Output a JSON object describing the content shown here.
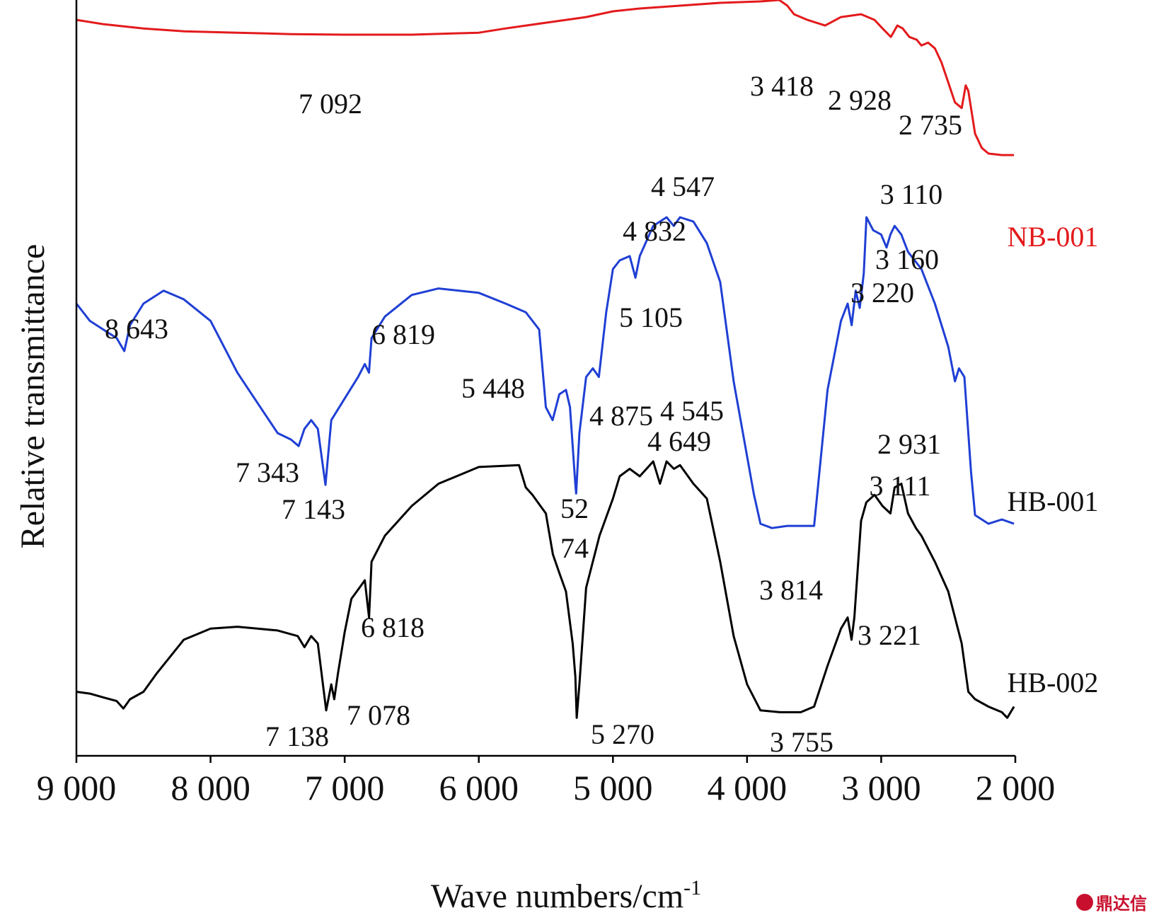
{
  "chart_data": {
    "type": "line",
    "xlabel": "Wave numbers/cm",
    "xlabel_superscript": "-1",
    "ylabel": "Relative transmittance",
    "xlim": [
      9000,
      2000
    ],
    "x_reversed": true,
    "xticks": [
      {
        "value": 9000,
        "label": "9 000"
      },
      {
        "value": 8000,
        "label": "8 000"
      },
      {
        "value": 7000,
        "label": "7 000"
      },
      {
        "value": 6000,
        "label": "6 000"
      },
      {
        "value": 5000,
        "label": "5 000"
      },
      {
        "value": 4000,
        "label": "4 000"
      },
      {
        "value": 3000,
        "label": "3 000"
      },
      {
        "value": 2000,
        "label": "2 000"
      }
    ],
    "ylim": [
      0,
      100
    ],
    "series": [
      {
        "name": "NB-001",
        "color": "#e31a1c",
        "points": [
          [
            9000,
            95
          ],
          [
            8800,
            93.5
          ],
          [
            8500,
            92
          ],
          [
            8200,
            91
          ],
          [
            7800,
            90.5
          ],
          [
            7400,
            90
          ],
          [
            7000,
            89.8
          ],
          [
            6500,
            89.8
          ],
          [
            6000,
            90.5
          ],
          [
            5800,
            92
          ],
          [
            5500,
            94
          ],
          [
            5200,
            96
          ],
          [
            5000,
            98
          ],
          [
            4800,
            99
          ],
          [
            4500,
            100
          ],
          [
            4200,
            101
          ],
          [
            3900,
            101.5
          ],
          [
            3760,
            102
          ],
          [
            3700,
            100
          ],
          [
            3650,
            97
          ],
          [
            3550,
            95
          ],
          [
            3418,
            93
          ],
          [
            3300,
            96
          ],
          [
            3150,
            97
          ],
          [
            3050,
            95
          ],
          [
            2990,
            92
          ],
          [
            2928,
            89
          ],
          [
            2880,
            93
          ],
          [
            2840,
            92
          ],
          [
            2790,
            89
          ],
          [
            2735,
            88
          ],
          [
            2700,
            86
          ],
          [
            2650,
            87
          ],
          [
            2600,
            85
          ],
          [
            2550,
            80
          ],
          [
            2500,
            73
          ],
          [
            2450,
            66
          ],
          [
            2400,
            64
          ],
          [
            2370,
            72
          ],
          [
            2350,
            70
          ],
          [
            2300,
            55
          ],
          [
            2250,
            50
          ],
          [
            2200,
            48
          ],
          [
            2100,
            47.5
          ],
          [
            2010,
            47.5
          ]
        ]
      },
      {
        "name": "HB-001",
        "color": "#1f3fd4",
        "points": [
          [
            9000,
            60
          ],
          [
            8900,
            56
          ],
          [
            8800,
            54
          ],
          [
            8700,
            52
          ],
          [
            8643,
            49
          ],
          [
            8600,
            55
          ],
          [
            8500,
            60
          ],
          [
            8350,
            63
          ],
          [
            8200,
            61
          ],
          [
            8000,
            56
          ],
          [
            7800,
            44
          ],
          [
            7650,
            37
          ],
          [
            7500,
            30
          ],
          [
            7400,
            28.5
          ],
          [
            7343,
            27
          ],
          [
            7300,
            31
          ],
          [
            7250,
            33
          ],
          [
            7200,
            31
          ],
          [
            7143,
            18
          ],
          [
            7100,
            33
          ],
          [
            7000,
            38
          ],
          [
            6900,
            43
          ],
          [
            6850,
            46
          ],
          [
            6819,
            44
          ],
          [
            6800,
            52
          ],
          [
            6700,
            57
          ],
          [
            6500,
            62
          ],
          [
            6300,
            63.5
          ],
          [
            6000,
            62.5
          ],
          [
            5800,
            60
          ],
          [
            5650,
            58
          ],
          [
            5550,
            54
          ],
          [
            5500,
            36
          ],
          [
            5450,
            33
          ],
          [
            5400,
            39
          ],
          [
            5350,
            40
          ],
          [
            5320,
            36
          ],
          [
            5280,
            18
          ],
          [
            5274,
            16
          ],
          [
            5250,
            30
          ],
          [
            5200,
            43
          ],
          [
            5150,
            45
          ],
          [
            5105,
            43
          ],
          [
            5050,
            58
          ],
          [
            5000,
            68
          ],
          [
            4950,
            70
          ],
          [
            4875,
            71
          ],
          [
            4832,
            66
          ],
          [
            4800,
            71
          ],
          [
            4700,
            78
          ],
          [
            4600,
            80
          ],
          [
            4547,
            78
          ],
          [
            4500,
            80
          ],
          [
            4400,
            79
          ],
          [
            4300,
            74
          ],
          [
            4200,
            65
          ],
          [
            4100,
            42
          ],
          [
            3950,
            16
          ],
          [
            3900,
            9
          ],
          [
            3814,
            8
          ],
          [
            3700,
            8.5
          ],
          [
            3500,
            8.5
          ],
          [
            3400,
            40
          ],
          [
            3300,
            56
          ],
          [
            3250,
            60
          ],
          [
            3220,
            55
          ],
          [
            3190,
            63
          ],
          [
            3160,
            59
          ],
          [
            3130,
            67
          ],
          [
            3110,
            80
          ],
          [
            3060,
            77
          ],
          [
            3000,
            76
          ],
          [
            2960,
            73
          ],
          [
            2931,
            76
          ],
          [
            2900,
            78
          ],
          [
            2850,
            76
          ],
          [
            2800,
            72
          ],
          [
            2700,
            68
          ],
          [
            2600,
            60
          ],
          [
            2500,
            50
          ],
          [
            2450,
            42
          ],
          [
            2420,
            45
          ],
          [
            2380,
            43
          ],
          [
            2330,
            21
          ],
          [
            2300,
            11
          ],
          [
            2200,
            9
          ],
          [
            2100,
            10
          ],
          [
            2010,
            9
          ]
        ]
      },
      {
        "name": "HB-002",
        "color": "#000000",
        "points": [
          [
            9000,
            10
          ],
          [
            8900,
            9.5
          ],
          [
            8800,
            8.5
          ],
          [
            8700,
            7.5
          ],
          [
            8650,
            5.5
          ],
          [
            8600,
            8
          ],
          [
            8500,
            10
          ],
          [
            8400,
            15
          ],
          [
            8200,
            24
          ],
          [
            8000,
            27
          ],
          [
            7800,
            27.5
          ],
          [
            7500,
            26.5
          ],
          [
            7350,
            25
          ],
          [
            7300,
            22
          ],
          [
            7250,
            25
          ],
          [
            7200,
            23
          ],
          [
            7138,
            5
          ],
          [
            7100,
            12
          ],
          [
            7078,
            8
          ],
          [
            7050,
            15
          ],
          [
            7000,
            26
          ],
          [
            6950,
            35
          ],
          [
            6850,
            40
          ],
          [
            6818,
            30
          ],
          [
            6800,
            45
          ],
          [
            6700,
            52
          ],
          [
            6500,
            60
          ],
          [
            6300,
            66
          ],
          [
            6000,
            70.5
          ],
          [
            5700,
            71
          ],
          [
            5650,
            65
          ],
          [
            5600,
            63
          ],
          [
            5500,
            58
          ],
          [
            5448,
            47
          ],
          [
            5400,
            42
          ],
          [
            5350,
            37
          ],
          [
            5300,
            23
          ],
          [
            5280,
            14
          ],
          [
            5270,
            3
          ],
          [
            5250,
            12
          ],
          [
            5200,
            38
          ],
          [
            5100,
            52
          ],
          [
            5000,
            62
          ],
          [
            4950,
            68
          ],
          [
            4875,
            70
          ],
          [
            4800,
            68
          ],
          [
            4700,
            72
          ],
          [
            4649,
            66
          ],
          [
            4600,
            72
          ],
          [
            4545,
            70
          ],
          [
            4500,
            71
          ],
          [
            4400,
            66
          ],
          [
            4300,
            62
          ],
          [
            4200,
            45
          ],
          [
            4100,
            25
          ],
          [
            4000,
            12
          ],
          [
            3900,
            5
          ],
          [
            3755,
            4.5
          ],
          [
            3600,
            4.5
          ],
          [
            3500,
            6
          ],
          [
            3400,
            17
          ],
          [
            3300,
            27
          ],
          [
            3250,
            30
          ],
          [
            3221,
            24
          ],
          [
            3200,
            30
          ],
          [
            3150,
            56
          ],
          [
            3111,
            61
          ],
          [
            3050,
            63
          ],
          [
            2990,
            60
          ],
          [
            2931,
            58
          ],
          [
            2900,
            65
          ],
          [
            2850,
            66
          ],
          [
            2800,
            58
          ],
          [
            2740,
            54
          ],
          [
            2700,
            52
          ],
          [
            2600,
            45
          ],
          [
            2500,
            37
          ],
          [
            2400,
            23
          ],
          [
            2350,
            10
          ],
          [
            2300,
            8
          ],
          [
            2200,
            6
          ],
          [
            2100,
            4.5
          ],
          [
            2060,
            3
          ],
          [
            2010,
            6
          ]
        ]
      }
    ],
    "series_labels": [
      "NB-001",
      "HB-001",
      "HB-002"
    ],
    "annotations": [
      {
        "text": "7 092",
        "series": "NB-001",
        "x": 7092
      },
      {
        "text": "3 418",
        "series": "NB-001",
        "x": 3418
      },
      {
        "text": "2 928",
        "series": "NB-001",
        "x": 2928
      },
      {
        "text": "2 735",
        "series": "NB-001",
        "x": 2735
      },
      {
        "text": "8 643",
        "series": "HB-001",
        "x": 8643
      },
      {
        "text": "7 343",
        "series": "HB-001",
        "x": 7343
      },
      {
        "text": "7 143",
        "series": "HB-001",
        "x": 7143
      },
      {
        "text": "6 819",
        "series": "HB-001",
        "x": 6819
      },
      {
        "text": "52",
        "series": "HB-001",
        "x": 5274
      },
      {
        "text": "74",
        "series": "HB-001",
        "x": 5274
      },
      {
        "text": "5 105",
        "series": "HB-001",
        "x": 5105
      },
      {
        "text": "4 875",
        "series": "HB-001",
        "x": 4875
      },
      {
        "text": "4 832",
        "series": "HB-001",
        "x": 4832
      },
      {
        "text": "4 547",
        "series": "HB-001",
        "x": 4547
      },
      {
        "text": "3 814",
        "series": "HB-001",
        "x": 3814
      },
      {
        "text": "3 220",
        "series": "HB-001",
        "x": 3220
      },
      {
        "text": "3 160",
        "series": "HB-001",
        "x": 3160
      },
      {
        "text": "3 110",
        "series": "HB-001",
        "x": 3110
      },
      {
        "text": "2 931",
        "series": "HB-001",
        "x": 2931
      },
      {
        "text": "7 138",
        "series": "HB-002",
        "x": 7138
      },
      {
        "text": "7 078",
        "series": "HB-002",
        "x": 7078
      },
      {
        "text": "6 818",
        "series": "HB-002",
        "x": 6818
      },
      {
        "text": "5 448",
        "series": "HB-002",
        "x": 5448
      },
      {
        "text": "5 270",
        "series": "HB-002",
        "x": 5270
      },
      {
        "text": "4 649",
        "series": "HB-002",
        "x": 4649
      },
      {
        "text": "4 545",
        "series": "HB-002",
        "x": 4545
      },
      {
        "text": "3 755",
        "series": "HB-002",
        "x": 3755
      },
      {
        "text": "3 221",
        "series": "HB-002",
        "x": 3221
      },
      {
        "text": "3 111",
        "series": "HB-002",
        "x": 3111
      }
    ]
  },
  "watermark": {
    "text": "鼎达信",
    "color": "#c8102e"
  }
}
